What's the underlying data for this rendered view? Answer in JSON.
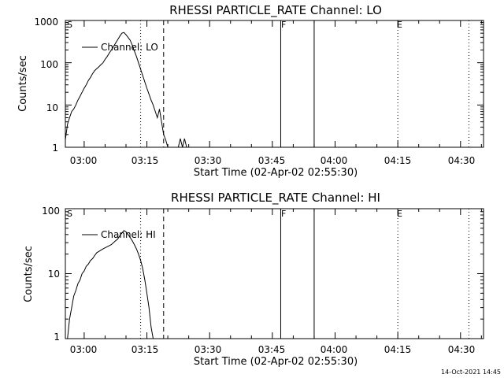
{
  "chart_data": [
    {
      "type": "line",
      "title": "RHESSI PARTICLE_RATE Channel: LO",
      "xlabel": "Start Time (02-Apr-02 02:55:30)",
      "ylabel": "Counts/sec",
      "yscale": "log",
      "ylim": [
        1,
        1000
      ],
      "xlim": [
        "02:55:30",
        "04:35:30"
      ],
      "xtick_labels": [
        "03:00",
        "03:15",
        "03:30",
        "03:45",
        "04:00",
        "04:15",
        "04:30"
      ],
      "ytick_labels": [
        "1",
        "10",
        "100",
        "1000"
      ],
      "legend": "top-left",
      "grid": false,
      "series": [
        {
          "name": "Channel: LO",
          "x": [
            "02:55:30",
            "02:56:00",
            "02:56:30",
            "02:57:00",
            "02:57:30",
            "02:58:00",
            "02:58:30",
            "02:59:00",
            "02:59:30",
            "03:00:00",
            "03:00:30",
            "03:01:00",
            "03:01:30",
            "03:02:00",
            "03:02:30",
            "03:03:00",
            "03:03:30",
            "03:04:00",
            "03:04:30",
            "03:05:00",
            "03:05:30",
            "03:06:00",
            "03:06:30",
            "03:07:00",
            "03:07:30",
            "03:08:00",
            "03:08:30",
            "03:09:00",
            "03:09:30",
            "03:10:00",
            "03:10:30",
            "03:11:00",
            "03:11:30",
            "03:12:00",
            "03:12:30",
            "03:13:00",
            "03:13:30",
            "03:14:00",
            "03:14:30",
            "03:15:00",
            "03:15:30",
            "03:16:00",
            "03:16:30",
            "03:17:00",
            "03:17:30",
            "03:18:00",
            "03:18:30",
            "03:19:00",
            "03:19:30",
            "03:20:00",
            "03:20:30",
            "03:21:00",
            "03:21:30",
            "03:22:00",
            "03:22:30",
            "03:23:00",
            "03:23:30",
            "03:24:00",
            "03:24:30"
          ],
          "values": [
            1.5,
            3.5,
            5,
            7,
            8,
            10,
            13,
            16,
            20,
            25,
            30,
            38,
            45,
            55,
            65,
            72,
            80,
            90,
            100,
            120,
            140,
            170,
            200,
            240,
            290,
            350,
            420,
            500,
            520,
            460,
            400,
            340,
            260,
            190,
            140,
            100,
            70,
            50,
            35,
            25,
            18,
            13,
            10,
            7,
            5,
            8,
            4,
            2,
            1.5,
            1,
            1,
            1,
            1,
            1,
            1,
            1.6,
            1,
            1.6,
            1
          ]
        }
      ],
      "annotations": [
        "S",
        "F",
        "E"
      ]
    },
    {
      "type": "line",
      "title": "RHESSI PARTICLE_RATE Channel: HI",
      "xlabel": "Start Time (02-Apr-02 02:55:30)",
      "ylabel": "Counts/sec",
      "yscale": "log",
      "ylim": [
        1,
        100
      ],
      "xlim": [
        "02:55:30",
        "04:35:30"
      ],
      "xtick_labels": [
        "03:00",
        "03:15",
        "03:30",
        "03:45",
        "04:00",
        "04:15",
        "04:30"
      ],
      "ytick_labels": [
        "1",
        "10",
        "100"
      ],
      "legend": "top-left",
      "grid": false,
      "series": [
        {
          "name": "Channel: HI",
          "x": [
            "02:56:00",
            "02:56:30",
            "02:57:00",
            "02:57:30",
            "02:58:00",
            "02:58:30",
            "02:59:00",
            "02:59:30",
            "03:00:00",
            "03:00:30",
            "03:01:00",
            "03:01:30",
            "03:02:00",
            "03:02:30",
            "03:03:00",
            "03:03:30",
            "03:04:00",
            "03:04:30",
            "03:05:00",
            "03:05:30",
            "03:06:00",
            "03:06:30",
            "03:07:00",
            "03:07:30",
            "03:08:00",
            "03:08:30",
            "03:09:00",
            "03:09:30",
            "03:10:00",
            "03:10:30",
            "03:11:00",
            "03:11:30",
            "03:12:00",
            "03:12:30",
            "03:13:00",
            "03:13:30",
            "03:14:00",
            "03:14:30",
            "03:15:00",
            "03:15:30",
            "03:16:00",
            "03:16:30"
          ],
          "values": [
            1,
            2,
            3,
            4.5,
            5.5,
            7,
            8,
            10,
            11,
            13,
            14,
            16,
            17,
            19,
            21,
            22,
            23,
            24,
            25,
            26,
            27,
            28,
            30,
            32,
            34,
            38,
            42,
            46,
            44,
            40,
            36,
            32,
            28,
            24,
            20,
            16,
            12,
            8,
            5,
            3,
            1.5,
            1
          ]
        }
      ],
      "annotations": [
        "S",
        "F",
        "E"
      ]
    }
  ],
  "markers": {
    "dotted_times": [
      "03:13:30",
      "04:15:00",
      "04:32:00"
    ],
    "dashed_times": [
      "03:19:00"
    ],
    "solid_times": [
      "03:47:00",
      "03:55:00"
    ]
  },
  "colors": {
    "line": "#000000",
    "background": "#ffffff"
  },
  "footer": {
    "timestamp": "14-Oct-2021 14:45"
  }
}
